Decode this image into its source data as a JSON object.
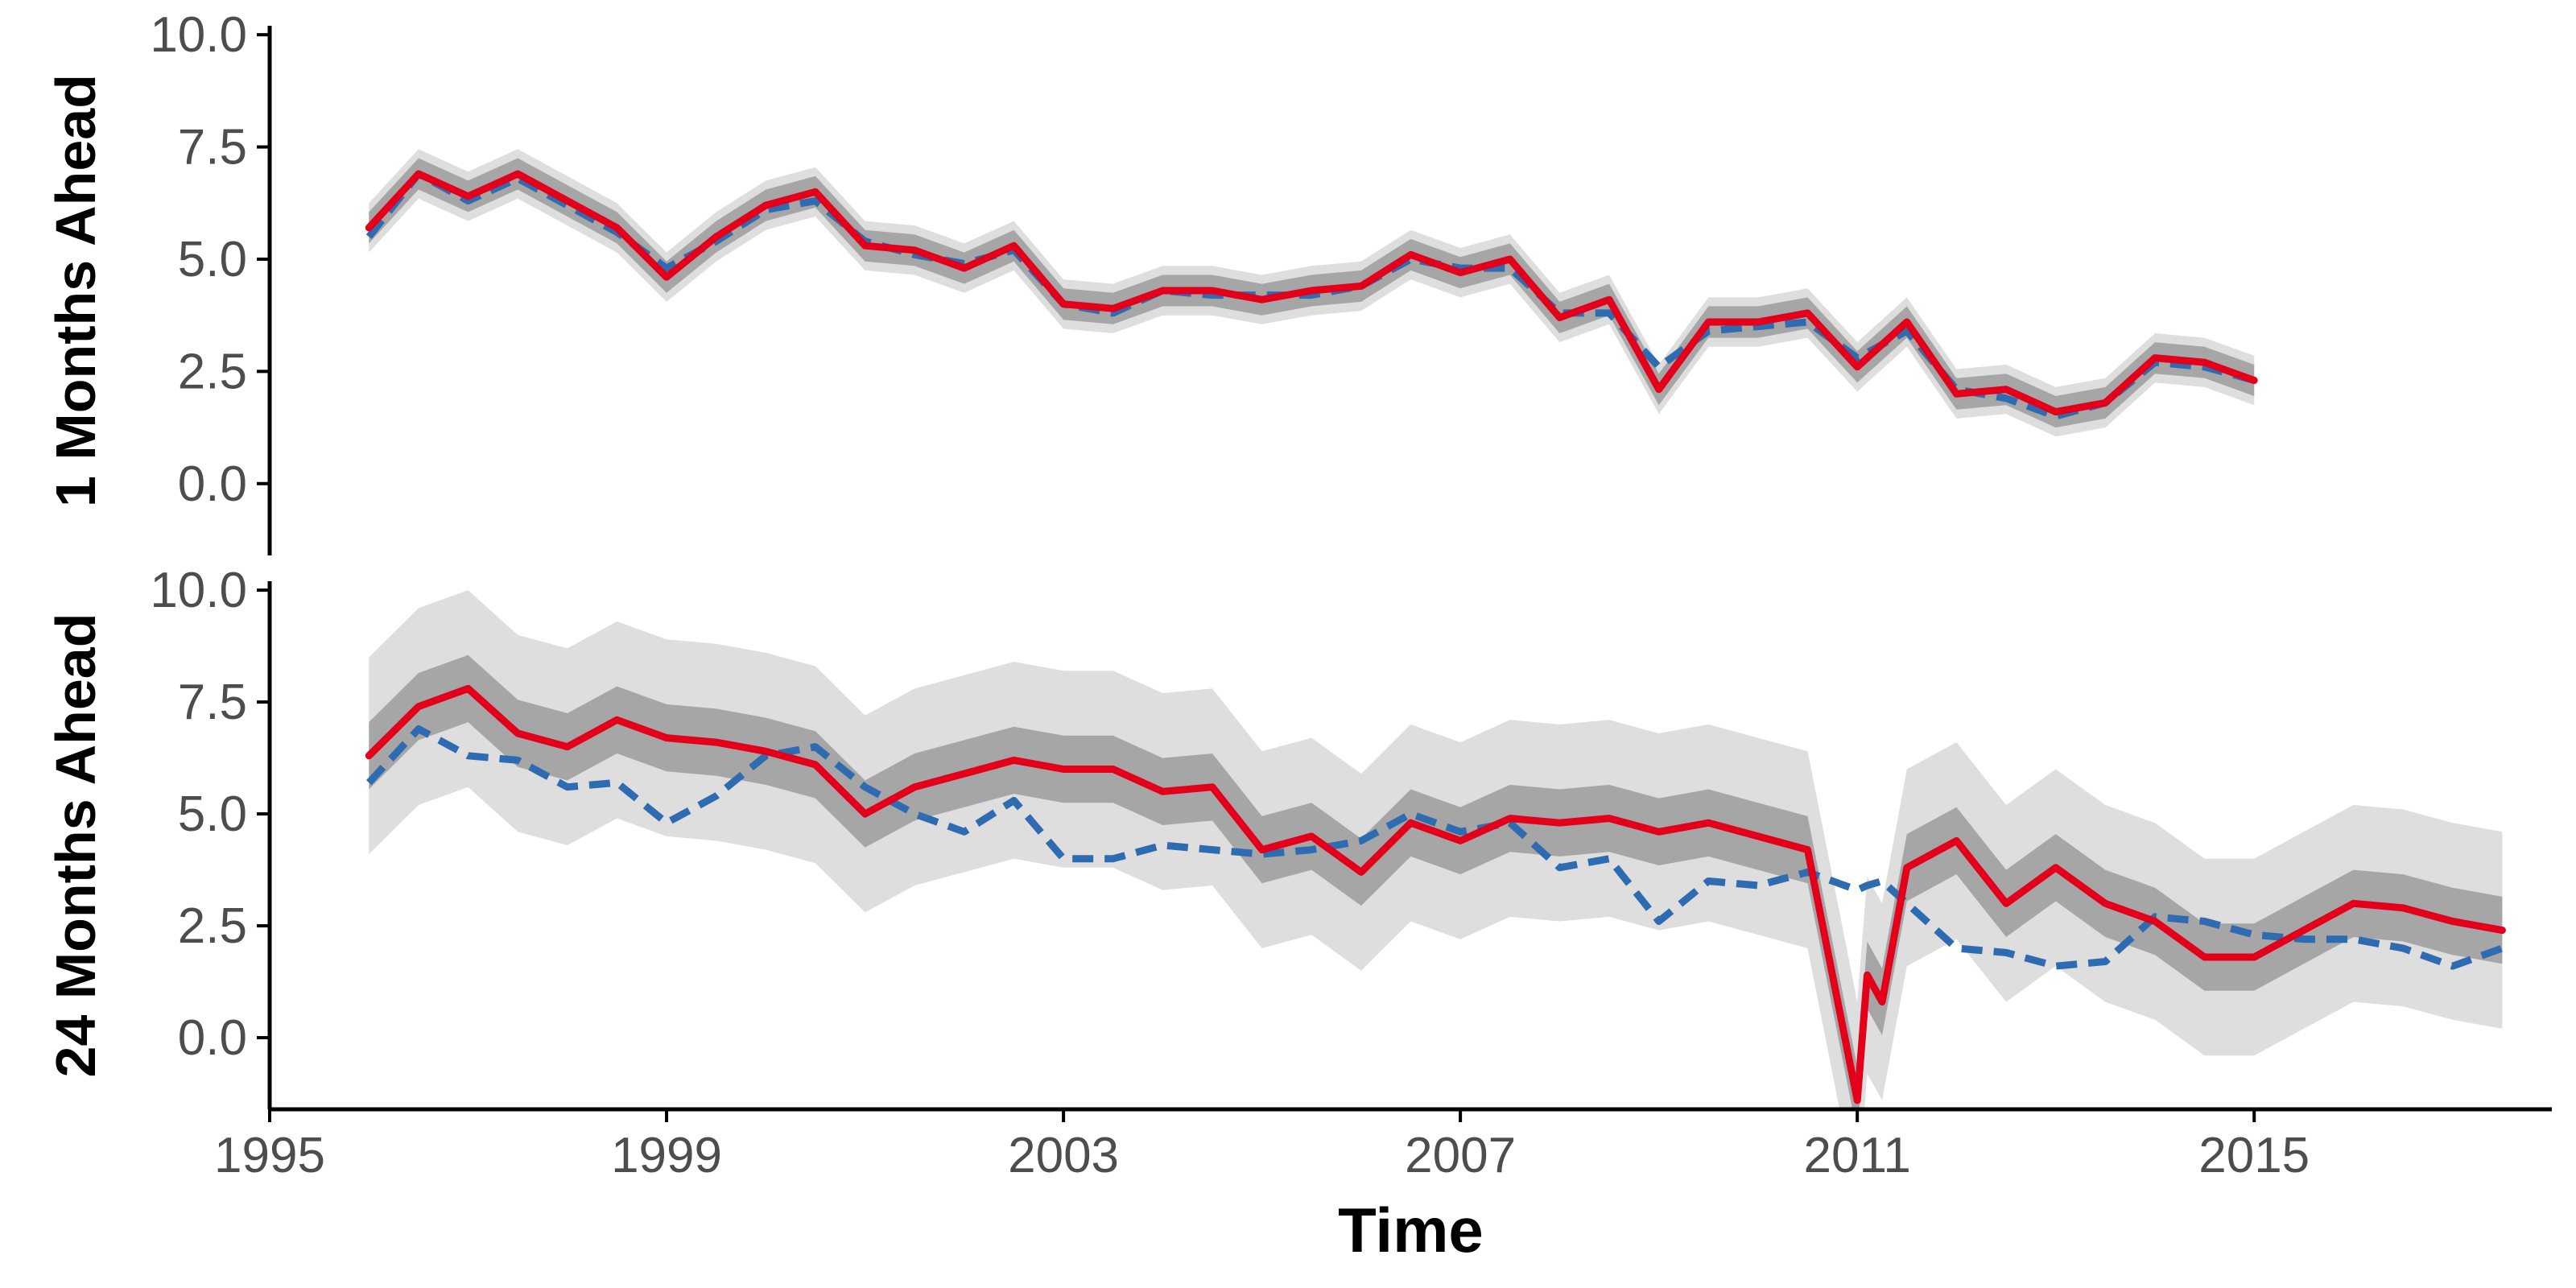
{
  "chart_data": {
    "type": "line",
    "xlabel": "Time",
    "x_ticks": [
      "1995",
      "1999",
      "2003",
      "2007",
      "2011",
      "2015"
    ],
    "x_range": [
      1995.0,
      2018.0
    ],
    "colors": {
      "forecast": "#e3001b",
      "actual": "#2e6bb0",
      "band_inner": "#a6a6a6",
      "band_outer": "#dedede"
    },
    "panels": [
      {
        "ylabel": "1 Months Ahead",
        "y_ticks": [
          "0.0",
          "2.5",
          "5.0",
          "7.5",
          "10.0"
        ],
        "ylim": [
          -1.6,
          10.2
        ],
        "x": [
          1996.0,
          1996.5,
          1997.0,
          1997.5,
          1998.0,
          1998.5,
          1999.0,
          1999.5,
          2000.0,
          2000.5,
          2001.0,
          2001.5,
          2002.0,
          2002.5,
          2003.0,
          2003.5,
          2004.0,
          2004.5,
          2005.0,
          2005.5,
          2006.0,
          2006.5,
          2007.0,
          2007.5,
          2008.0,
          2008.5,
          2009.0,
          2009.5,
          2010.0,
          2010.5,
          2011.0,
          2011.5,
          2012.0,
          2012.5,
          2013.0,
          2013.5,
          2014.0,
          2014.5,
          2015.0
        ],
        "forecast": [
          5.7,
          6.9,
          6.4,
          6.9,
          6.3,
          5.7,
          4.6,
          5.5,
          6.2,
          6.5,
          5.3,
          5.2,
          4.8,
          5.3,
          4.0,
          3.9,
          4.3,
          4.3,
          4.1,
          4.3,
          4.4,
          5.1,
          4.7,
          5.0,
          3.7,
          4.1,
          2.1,
          3.6,
          3.6,
          3.8,
          2.6,
          3.6,
          2.0,
          2.1,
          1.6,
          1.8,
          2.8,
          2.7,
          2.3
        ],
        "actual": [
          5.5,
          6.9,
          6.3,
          6.8,
          6.2,
          5.6,
          4.8,
          5.4,
          6.1,
          6.3,
          5.4,
          5.1,
          4.9,
          5.2,
          4.0,
          3.8,
          4.3,
          4.2,
          4.2,
          4.2,
          4.4,
          5.0,
          4.8,
          4.8,
          3.8,
          3.8,
          2.6,
          3.4,
          3.5,
          3.6,
          2.8,
          3.4,
          2.1,
          1.9,
          1.5,
          1.8,
          2.7,
          2.6,
          2.3
        ],
        "band_inner": 0.35,
        "band_outer": 0.55
      },
      {
        "ylabel": "24 Months Ahead",
        "y_ticks": [
          "0.0",
          "2.5",
          "5.0",
          "7.5",
          "10.0"
        ],
        "ylim": [
          -1.6,
          10.2
        ],
        "x": [
          1996.0,
          1996.5,
          1997.0,
          1997.5,
          1998.0,
          1998.5,
          1999.0,
          1999.5,
          2000.0,
          2000.5,
          2001.0,
          2001.5,
          2002.0,
          2002.5,
          2003.0,
          2003.5,
          2004.0,
          2004.5,
          2005.0,
          2005.5,
          2006.0,
          2006.5,
          2007.0,
          2007.5,
          2008.0,
          2008.5,
          2009.0,
          2009.5,
          2010.0,
          2010.5,
          2011.0,
          2011.1,
          2011.25,
          2011.5,
          2012.0,
          2012.5,
          2013.0,
          2013.5,
          2014.0,
          2014.5,
          2015.0,
          2015.5,
          2016.0,
          2016.5,
          2017.0,
          2017.5
        ],
        "forecast": [
          6.3,
          7.4,
          7.8,
          6.8,
          6.5,
          7.1,
          6.7,
          6.6,
          6.4,
          6.1,
          5.0,
          5.6,
          5.9,
          6.2,
          6.0,
          6.0,
          5.5,
          5.6,
          4.2,
          4.5,
          3.7,
          4.8,
          4.4,
          4.9,
          4.8,
          4.9,
          4.6,
          4.8,
          4.5,
          4.2,
          -1.4,
          1.4,
          0.8,
          3.8,
          4.4,
          3.0,
          3.8,
          3.0,
          2.6,
          1.8,
          1.8,
          2.4,
          3.0,
          2.9,
          2.6,
          2.4
        ],
        "actual": [
          5.7,
          6.9,
          6.3,
          6.2,
          5.6,
          5.7,
          4.8,
          5.4,
          6.3,
          6.5,
          5.6,
          5.0,
          4.6,
          5.3,
          4.0,
          4.0,
          4.3,
          4.2,
          4.1,
          4.2,
          4.4,
          5.0,
          4.6,
          4.8,
          3.8,
          4.0,
          2.6,
          3.5,
          3.4,
          3.7,
          3.3,
          3.4,
          3.5,
          3.0,
          2.0,
          1.9,
          1.6,
          1.7,
          2.7,
          2.6,
          2.3,
          2.2,
          2.2,
          2.0,
          1.6,
          2.0
        ],
        "band_inner": 0.75,
        "band_outer": 2.2
      }
    ]
  }
}
